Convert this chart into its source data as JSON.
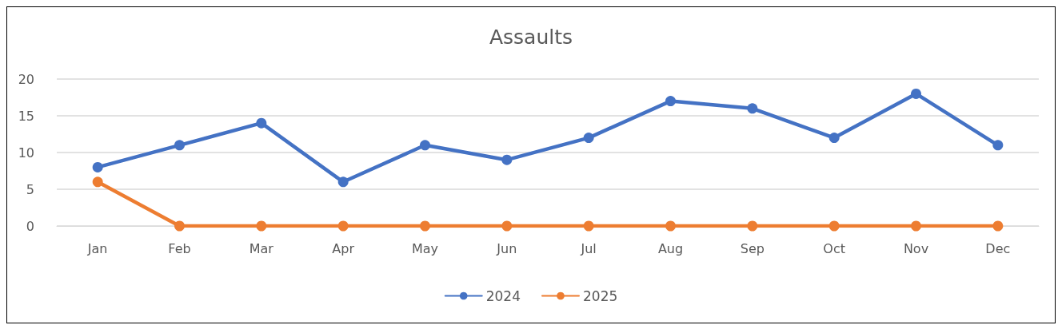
{
  "chart_data": {
    "type": "line",
    "title": "Assaults",
    "categories": [
      "Jan",
      "Feb",
      "Mar",
      "Apr",
      "May",
      "Jun",
      "Jul",
      "Aug",
      "Sep",
      "Oct",
      "Nov",
      "Dec"
    ],
    "series": [
      {
        "name": "2024",
        "color": "#4472c4",
        "values": [
          8,
          11,
          14,
          6,
          11,
          9,
          12,
          17,
          16,
          12,
          18,
          11
        ]
      },
      {
        "name": "2025",
        "color": "#ed7d31",
        "values": [
          6,
          0,
          0,
          0,
          0,
          0,
          0,
          0,
          0,
          0,
          0,
          0
        ]
      }
    ],
    "ylim": [
      0,
      20
    ],
    "yticks": [
      0,
      5,
      10,
      15,
      20
    ],
    "grid": "y",
    "legend": "bottom",
    "marker": "circle",
    "line_style": "solid"
  }
}
